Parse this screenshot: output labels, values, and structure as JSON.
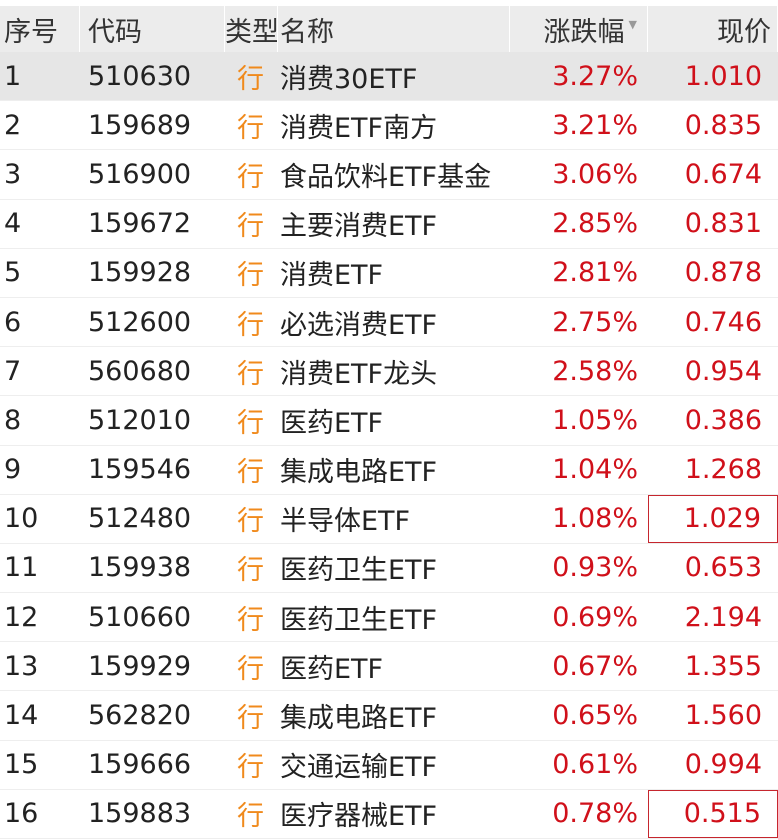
{
  "header": {
    "index": "序号",
    "code": "代码",
    "type": "类型",
    "name": "名称",
    "change": "涨跌幅",
    "price": "现价",
    "sort_icon": "triangle-down"
  },
  "colors": {
    "up": "#d0101a",
    "type": "#f08a1c",
    "selected_row": "#e6e6e6"
  },
  "rows": [
    {
      "index": "1",
      "code": "510630",
      "type": "行",
      "name": "消费30ETF",
      "change": "3.27%",
      "price": "1.010",
      "selected": true
    },
    {
      "index": "2",
      "code": "159689",
      "type": "行",
      "name": "消费ETF南方",
      "change": "3.21%",
      "price": "0.835"
    },
    {
      "index": "3",
      "code": "516900",
      "type": "行",
      "name": "食品饮料ETF基金",
      "change": "3.06%",
      "price": "0.674"
    },
    {
      "index": "4",
      "code": "159672",
      "type": "行",
      "name": "主要消费ETF",
      "change": "2.85%",
      "price": "0.831"
    },
    {
      "index": "5",
      "code": "159928",
      "type": "行",
      "name": "消费ETF",
      "change": "2.81%",
      "price": "0.878"
    },
    {
      "index": "6",
      "code": "512600",
      "type": "行",
      "name": "必选消费ETF",
      "change": "2.75%",
      "price": "0.746"
    },
    {
      "index": "7",
      "code": "560680",
      "type": "行",
      "name": "消费ETF龙头",
      "change": "2.58%",
      "price": "0.954"
    },
    {
      "index": "8",
      "code": "512010",
      "type": "行",
      "name": "医药ETF",
      "change": "1.05%",
      "price": "0.386"
    },
    {
      "index": "9",
      "code": "159546",
      "type": "行",
      "name": "集成电路ETF",
      "change": "1.04%",
      "price": "1.268"
    },
    {
      "index": "10",
      "code": "512480",
      "type": "行",
      "name": "半导体ETF",
      "change": "1.08%",
      "price": "1.029",
      "boxed": true
    },
    {
      "index": "11",
      "code": "159938",
      "type": "行",
      "name": "医药卫生ETF",
      "change": "0.93%",
      "price": "0.653"
    },
    {
      "index": "12",
      "code": "510660",
      "type": "行",
      "name": "医药卫生ETF",
      "change": "0.69%",
      "price": "2.194"
    },
    {
      "index": "13",
      "code": "159929",
      "type": "行",
      "name": "医药ETF",
      "change": "0.67%",
      "price": "1.355"
    },
    {
      "index": "14",
      "code": "562820",
      "type": "行",
      "name": "集成电路ETF",
      "change": "0.65%",
      "price": "1.560"
    },
    {
      "index": "15",
      "code": "159666",
      "type": "行",
      "name": "交通运输ETF",
      "change": "0.61%",
      "price": "0.994"
    },
    {
      "index": "16",
      "code": "159883",
      "type": "行",
      "name": "医疗器械ETF",
      "change": "0.78%",
      "price": "0.515",
      "boxed": true
    }
  ]
}
